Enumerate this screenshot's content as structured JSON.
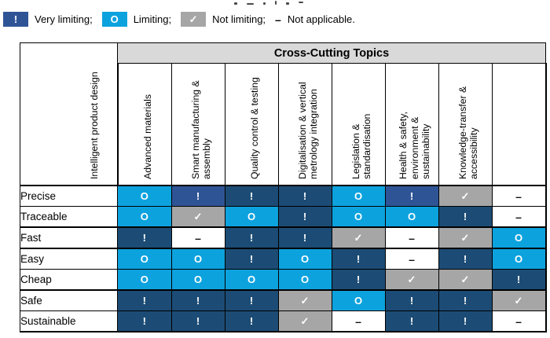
{
  "colors": {
    "very": "#1C4C75",
    "very_alt": "#2F5496",
    "limiting": "#0CA2DE",
    "not_limiting": "#A6A6A6",
    "header_bg": "#D9D9D9"
  },
  "chart_data": {
    "type": "heatmap",
    "title": "Cross-Cutting Topics",
    "legend": [
      {
        "symbol": "!",
        "label": "Very limiting;",
        "type": "very",
        "chip": true
      },
      {
        "symbol": "O",
        "label": "Limiting;",
        "type": "limiting",
        "chip": true
      },
      {
        "symbol": "✓",
        "label": "Not limiting;",
        "type": "not_limiting",
        "chip": true
      },
      {
        "symbol": "–",
        "label": "Not applicable.",
        "type": "na",
        "chip": false
      }
    ],
    "symbol_meanings": {
      "!": "Very limiting",
      "!*": "Very limiting (lighter navy shade)",
      "O": "Limiting",
      "✓": "Not limiting",
      "–": "Not applicable"
    },
    "columns": [
      "Intelligent product design",
      "Advanced materials",
      "Smart manufacturing & assembly",
      "Quality control & testing",
      "Digitalisation & vertical metrology integration",
      "Legislation & standardisation",
      "Health & safety, environment & sustainability",
      "Knowledge-transfer & accessibility"
    ],
    "rows": [
      {
        "label": "Precise",
        "cells": [
          "O",
          "!*",
          "!",
          "!",
          "O",
          "!*",
          "✓",
          "–"
        ]
      },
      {
        "label": "Traceable",
        "cells": [
          "O",
          "✓",
          "O",
          "!",
          "O",
          "O",
          "!",
          "–"
        ]
      },
      {
        "label": "Fast",
        "cells": [
          "!",
          "–",
          "!",
          "!",
          "✓",
          "–",
          "✓",
          "O"
        ]
      },
      {
        "label": "Easy",
        "cells": [
          "O",
          "O",
          "!",
          "O",
          "!",
          "–",
          "!",
          "O"
        ]
      },
      {
        "label": "Cheap",
        "cells": [
          "O",
          "O",
          "O",
          "O",
          "!",
          "✓",
          "✓",
          "!"
        ]
      },
      {
        "label": "Safe",
        "cells": [
          "!",
          "!",
          "!",
          "✓",
          "O",
          "!",
          "!",
          "✓"
        ]
      },
      {
        "label": "Sustainable",
        "cells": [
          "!",
          "!",
          "!",
          "✓",
          "–",
          "!",
          "!",
          "–"
        ]
      }
    ],
    "thick_border_after_rows": [
      "Traceable",
      "Fast",
      "Cheap"
    ]
  }
}
